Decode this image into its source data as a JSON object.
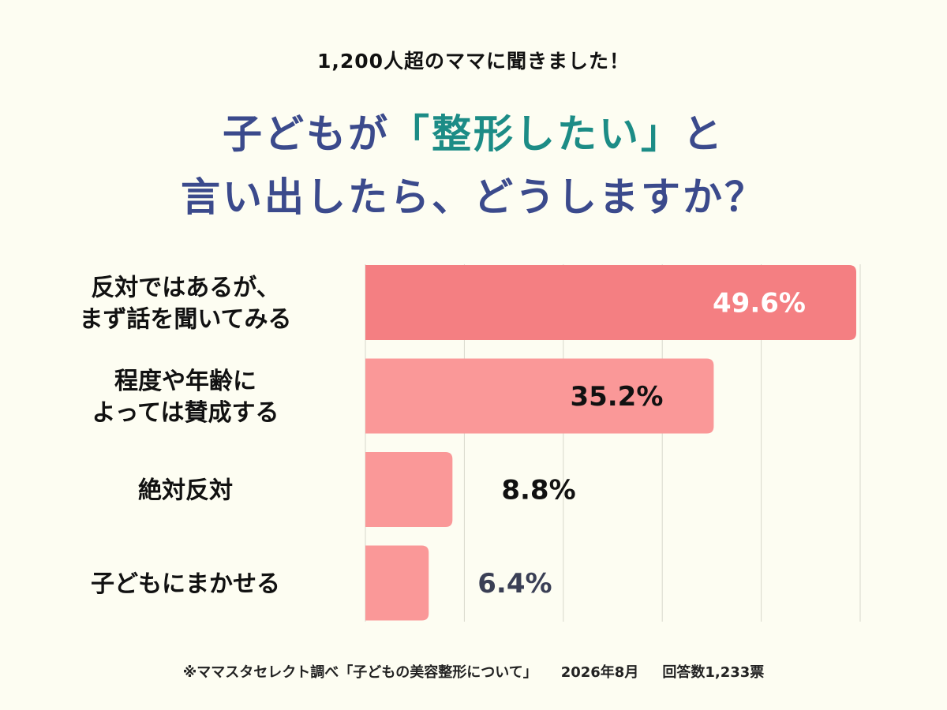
{
  "header": {
    "subtitle": "1,200人超のママに聞きました！",
    "title_line1_before": "子どもが",
    "title_line1_highlight": "「整形したい」",
    "title_line1_after": "と",
    "title_line2": "言い出したら、どうしますか？"
  },
  "colors": {
    "title": "#3b4a8c",
    "highlight": "#1c8c86",
    "bar_top": "#f47f82",
    "bar": "#fa9898",
    "background": "#fdfdf2"
  },
  "chart_data": {
    "type": "bar",
    "orientation": "horizontal",
    "categories": [
      [
        "反対ではあるが、",
        "まず話を聞いてみる"
      ],
      [
        "程度や年齢に",
        "よっては賛成する"
      ],
      [
        "絶対反対"
      ],
      [
        "子どもにまかせる"
      ]
    ],
    "values": [
      49.6,
      35.2,
      8.8,
      6.4
    ],
    "value_labels": [
      "49.6%",
      "35.2%",
      "8.8%",
      "6.4%"
    ],
    "unit": "%",
    "xlim": [
      0,
      50
    ],
    "grid": true
  },
  "footer": {
    "source": "※ママスタセレクト調べ「子どもの美容整形について」",
    "date": "2026年8月",
    "respondents": "回答数1,233票"
  }
}
